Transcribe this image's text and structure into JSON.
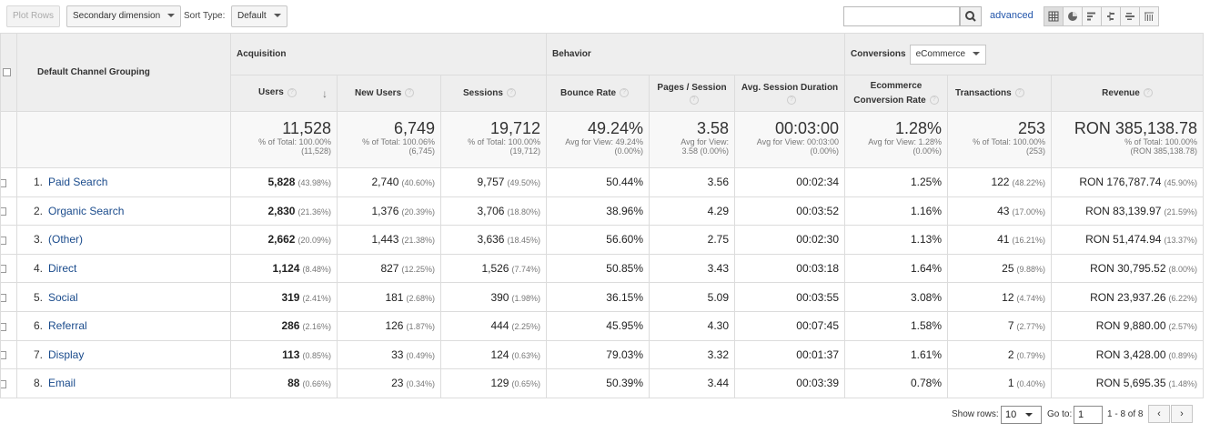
{
  "toolbar": {
    "plot_rows": "Plot Rows",
    "secondary_dimension": "Secondary dimension",
    "sort_type_label": "Sort Type:",
    "sort_type_value": "Default",
    "search_placeholder": "",
    "advanced": "advanced"
  },
  "groups": {
    "dimension": "Default Channel Grouping",
    "acquisition": "Acquisition",
    "behavior": "Behavior",
    "conversions": "Conversions",
    "conversions_select": "eCommerce"
  },
  "columns": [
    "Users",
    "New Users",
    "Sessions",
    "Bounce Rate",
    "Pages / Session",
    "Avg. Session Duration",
    "Ecommerce Conversion Rate",
    "Transactions",
    "Revenue"
  ],
  "totals": [
    {
      "value": "11,528",
      "l1": "% of Total: 100.00%",
      "l2": "(11,528)"
    },
    {
      "value": "6,749",
      "l1": "% of Total: 100.06%",
      "l2": "(6,745)"
    },
    {
      "value": "19,712",
      "l1": "% of Total: 100.00%",
      "l2": "(19,712)"
    },
    {
      "value": "49.24%",
      "l1": "Avg for View: 49.24%",
      "l2": "(0.00%)"
    },
    {
      "value": "3.58",
      "l1": "Avg for View:",
      "l2": "3.58 (0.00%)"
    },
    {
      "value": "00:03:00",
      "l1": "Avg for View: 00:03:00",
      "l2": "(0.00%)"
    },
    {
      "value": "1.28%",
      "l1": "Avg for View: 1.28%",
      "l2": "(0.00%)"
    },
    {
      "value": "253",
      "l1": "% of Total: 100.00%",
      "l2": "(253)"
    },
    {
      "value": "RON 385,138.78",
      "l1": "% of Total: 100.00%",
      "l2": "(RON 385,138.78)"
    }
  ],
  "rows": [
    {
      "num": "1.",
      "channel": "Paid Search",
      "users": "5,828",
      "users_pct": "(43.98%)",
      "new_users": "2,740",
      "new_users_pct": "(40.60%)",
      "sessions": "9,757",
      "sessions_pct": "(49.50%)",
      "bounce": "50.44%",
      "pages": "3.56",
      "duration": "00:02:34",
      "conv": "1.25%",
      "trans": "122",
      "trans_pct": "(48.22%)",
      "revenue": "RON 176,787.74",
      "revenue_pct": "(45.90%)"
    },
    {
      "num": "2.",
      "channel": "Organic Search",
      "users": "2,830",
      "users_pct": "(21.36%)",
      "new_users": "1,376",
      "new_users_pct": "(20.39%)",
      "sessions": "3,706",
      "sessions_pct": "(18.80%)",
      "bounce": "38.96%",
      "pages": "4.29",
      "duration": "00:03:52",
      "conv": "1.16%",
      "trans": "43",
      "trans_pct": "(17.00%)",
      "revenue": "RON 83,139.97",
      "revenue_pct": "(21.59%)"
    },
    {
      "num": "3.",
      "channel": "(Other)",
      "users": "2,662",
      "users_pct": "(20.09%)",
      "new_users": "1,443",
      "new_users_pct": "(21.38%)",
      "sessions": "3,636",
      "sessions_pct": "(18.45%)",
      "bounce": "56.60%",
      "pages": "2.75",
      "duration": "00:02:30",
      "conv": "1.13%",
      "trans": "41",
      "trans_pct": "(16.21%)",
      "revenue": "RON 51,474.94",
      "revenue_pct": "(13.37%)"
    },
    {
      "num": "4.",
      "channel": "Direct",
      "users": "1,124",
      "users_pct": "(8.48%)",
      "new_users": "827",
      "new_users_pct": "(12.25%)",
      "sessions": "1,526",
      "sessions_pct": "(7.74%)",
      "bounce": "50.85%",
      "pages": "3.43",
      "duration": "00:03:18",
      "conv": "1.64%",
      "trans": "25",
      "trans_pct": "(9.88%)",
      "revenue": "RON 30,795.52",
      "revenue_pct": "(8.00%)"
    },
    {
      "num": "5.",
      "channel": "Social",
      "users": "319",
      "users_pct": "(2.41%)",
      "new_users": "181",
      "new_users_pct": "(2.68%)",
      "sessions": "390",
      "sessions_pct": "(1.98%)",
      "bounce": "36.15%",
      "pages": "5.09",
      "duration": "00:03:55",
      "conv": "3.08%",
      "trans": "12",
      "trans_pct": "(4.74%)",
      "revenue": "RON 23,937.26",
      "revenue_pct": "(6.22%)"
    },
    {
      "num": "6.",
      "channel": "Referral",
      "users": "286",
      "users_pct": "(2.16%)",
      "new_users": "126",
      "new_users_pct": "(1.87%)",
      "sessions": "444",
      "sessions_pct": "(2.25%)",
      "bounce": "45.95%",
      "pages": "4.30",
      "duration": "00:07:45",
      "conv": "1.58%",
      "trans": "7",
      "trans_pct": "(2.77%)",
      "revenue": "RON 9,880.00",
      "revenue_pct": "(2.57%)"
    },
    {
      "num": "7.",
      "channel": "Display",
      "users": "113",
      "users_pct": "(0.85%)",
      "new_users": "33",
      "new_users_pct": "(0.49%)",
      "sessions": "124",
      "sessions_pct": "(0.63%)",
      "bounce": "79.03%",
      "pages": "3.32",
      "duration": "00:01:37",
      "conv": "1.61%",
      "trans": "2",
      "trans_pct": "(0.79%)",
      "revenue": "RON 3,428.00",
      "revenue_pct": "(0.89%)"
    },
    {
      "num": "8.",
      "channel": "Email",
      "users": "88",
      "users_pct": "(0.66%)",
      "new_users": "23",
      "new_users_pct": "(0.34%)",
      "sessions": "129",
      "sessions_pct": "(0.65%)",
      "bounce": "50.39%",
      "pages": "3.44",
      "duration": "00:03:39",
      "conv": "0.78%",
      "trans": "1",
      "trans_pct": "(0.40%)",
      "revenue": "RON 5,695.35",
      "revenue_pct": "(1.48%)"
    }
  ],
  "footer": {
    "show_rows_label": "Show rows:",
    "show_rows_value": "10",
    "goto_label": "Go to:",
    "goto_value": "1",
    "range": "1 - 8 of 8",
    "prev": "‹",
    "next": "›"
  },
  "colors": {
    "link": "#1a4b8c",
    "header_bg": "#eeeeee",
    "totals_bg": "#f8f8f8"
  },
  "icons": [
    "search-icon",
    "table-view-icon",
    "pie-view-icon",
    "performance-view-icon",
    "comparison-view-icon",
    "term-cloud-view-icon",
    "pivot-view-icon",
    "sort-down-arrow-icon",
    "help-icon"
  ]
}
